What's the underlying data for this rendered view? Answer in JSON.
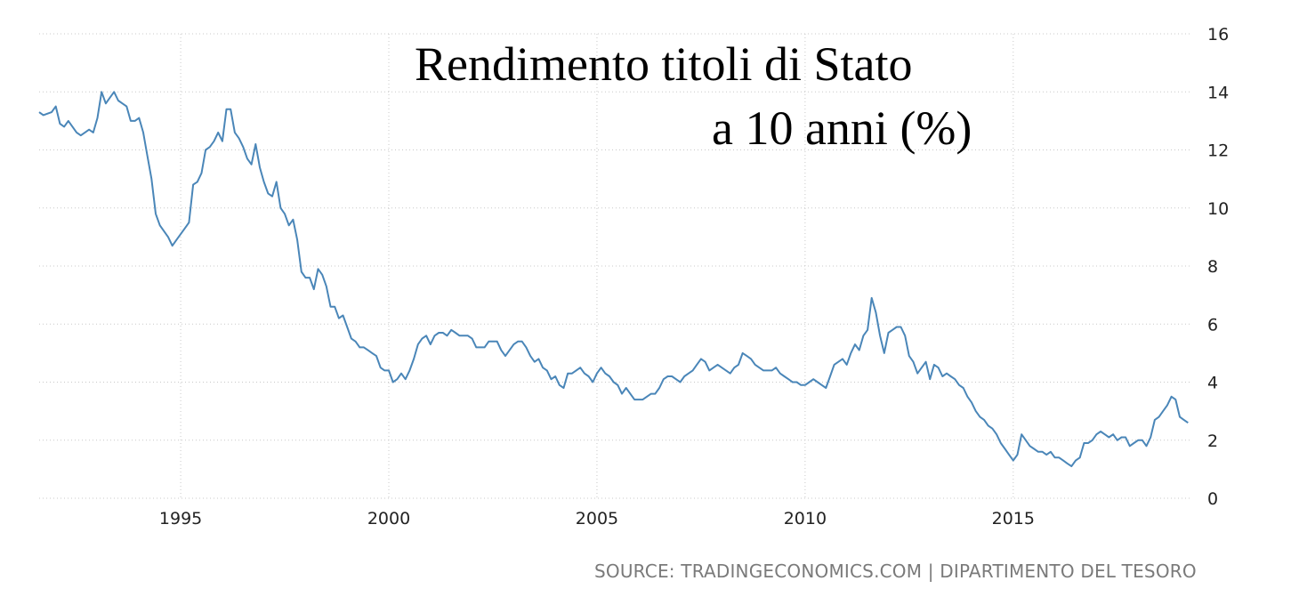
{
  "chart_data": {
    "type": "line",
    "title_line1": "Rendimento titoli di Stato",
    "title_line2": "a 10 anni (%)",
    "source": "SOURCE: TRADINGECONOMICS.COM | DIPARTIMENTO DEL TESORO",
    "xlim": [
      1991.6,
      2019.3
    ],
    "ylim": [
      0,
      16
    ],
    "x_ticks": [
      1995,
      2000,
      2005,
      2010,
      2015
    ],
    "y_ticks": [
      0,
      2,
      4,
      6,
      8,
      10,
      12,
      14,
      16
    ],
    "grid": true,
    "color": "#4a86b8",
    "series": [
      {
        "points": [
          [
            1991.6,
            13.3
          ],
          [
            1991.7,
            13.2
          ],
          [
            1991.9,
            13.3
          ],
          [
            1992.0,
            13.5
          ],
          [
            1992.1,
            12.9
          ],
          [
            1992.2,
            12.8
          ],
          [
            1992.3,
            13.0
          ],
          [
            1992.5,
            12.6
          ],
          [
            1992.6,
            12.5
          ],
          [
            1992.7,
            12.6
          ],
          [
            1992.8,
            12.7
          ],
          [
            1992.9,
            12.6
          ],
          [
            1993.0,
            13.1
          ],
          [
            1993.1,
            14.0
          ],
          [
            1993.2,
            13.6
          ],
          [
            1993.3,
            13.8
          ],
          [
            1993.4,
            14.0
          ],
          [
            1993.5,
            13.7
          ],
          [
            1993.6,
            13.6
          ],
          [
            1993.7,
            13.5
          ],
          [
            1993.8,
            13.0
          ],
          [
            1993.9,
            13.0
          ],
          [
            1994.0,
            13.1
          ],
          [
            1994.1,
            12.6
          ],
          [
            1994.2,
            11.8
          ],
          [
            1994.3,
            11.0
          ],
          [
            1994.4,
            9.8
          ],
          [
            1994.5,
            9.4
          ],
          [
            1994.6,
            9.2
          ],
          [
            1994.7,
            9.0
          ],
          [
            1994.8,
            8.7
          ],
          [
            1994.9,
            8.9
          ],
          [
            1995.0,
            9.1
          ],
          [
            1995.1,
            9.3
          ],
          [
            1995.2,
            9.5
          ],
          [
            1995.3,
            10.8
          ],
          [
            1995.4,
            10.9
          ],
          [
            1995.5,
            11.2
          ],
          [
            1995.6,
            12.0
          ],
          [
            1995.7,
            12.1
          ],
          [
            1995.8,
            12.3
          ],
          [
            1995.9,
            12.6
          ],
          [
            1996.0,
            12.3
          ],
          [
            1996.1,
            13.4
          ],
          [
            1996.2,
            13.4
          ],
          [
            1996.3,
            12.6
          ],
          [
            1996.4,
            12.4
          ],
          [
            1996.5,
            12.1
          ],
          [
            1996.6,
            11.7
          ],
          [
            1996.7,
            11.5
          ],
          [
            1996.8,
            12.2
          ],
          [
            1996.9,
            11.4
          ],
          [
            1997.0,
            10.9
          ],
          [
            1997.1,
            10.5
          ],
          [
            1997.2,
            10.4
          ],
          [
            1997.3,
            10.9
          ],
          [
            1997.4,
            10.0
          ],
          [
            1997.5,
            9.8
          ],
          [
            1997.6,
            9.4
          ],
          [
            1997.7,
            9.6
          ],
          [
            1997.8,
            8.9
          ],
          [
            1997.9,
            7.8
          ],
          [
            1998.0,
            7.6
          ],
          [
            1998.1,
            7.6
          ],
          [
            1998.2,
            7.2
          ],
          [
            1998.3,
            7.9
          ],
          [
            1998.4,
            7.7
          ],
          [
            1998.5,
            7.3
          ],
          [
            1998.6,
            6.6
          ],
          [
            1998.7,
            6.6
          ],
          [
            1998.8,
            6.2
          ],
          [
            1998.9,
            6.3
          ],
          [
            1999.0,
            5.9
          ],
          [
            1999.1,
            5.5
          ],
          [
            1999.2,
            5.4
          ],
          [
            1999.3,
            5.2
          ],
          [
            1999.4,
            5.2
          ],
          [
            1999.5,
            5.1
          ],
          [
            1999.6,
            5.0
          ],
          [
            1999.7,
            4.9
          ],
          [
            1999.8,
            4.5
          ],
          [
            1999.9,
            4.4
          ],
          [
            2000.0,
            4.4
          ],
          [
            2000.1,
            4.0
          ],
          [
            2000.2,
            4.1
          ],
          [
            2000.3,
            4.3
          ],
          [
            2000.4,
            4.1
          ],
          [
            2000.5,
            4.4
          ],
          [
            2000.6,
            4.8
          ],
          [
            2000.7,
            5.3
          ],
          [
            2000.8,
            5.5
          ],
          [
            2000.9,
            5.6
          ],
          [
            2001.0,
            5.3
          ],
          [
            2001.1,
            5.6
          ],
          [
            2001.2,
            5.7
          ],
          [
            2001.3,
            5.7
          ],
          [
            2001.4,
            5.6
          ],
          [
            2001.5,
            5.8
          ],
          [
            2001.6,
            5.7
          ],
          [
            2001.7,
            5.6
          ],
          [
            2001.8,
            5.6
          ],
          [
            2001.9,
            5.6
          ],
          [
            2002.0,
            5.5
          ],
          [
            2002.1,
            5.2
          ],
          [
            2002.2,
            5.2
          ],
          [
            2002.3,
            5.2
          ],
          [
            2002.4,
            5.4
          ],
          [
            2002.5,
            5.4
          ],
          [
            2002.6,
            5.4
          ],
          [
            2002.7,
            5.1
          ],
          [
            2002.8,
            4.9
          ],
          [
            2002.9,
            5.1
          ],
          [
            2003.0,
            5.3
          ],
          [
            2003.1,
            5.4
          ],
          [
            2003.2,
            5.4
          ],
          [
            2003.3,
            5.2
          ],
          [
            2003.4,
            4.9
          ],
          [
            2003.5,
            4.7
          ],
          [
            2003.6,
            4.8
          ],
          [
            2003.7,
            4.5
          ],
          [
            2003.8,
            4.4
          ],
          [
            2003.9,
            4.1
          ],
          [
            2004.0,
            4.2
          ],
          [
            2004.1,
            3.9
          ],
          [
            2004.2,
            3.8
          ],
          [
            2004.3,
            4.3
          ],
          [
            2004.4,
            4.3
          ],
          [
            2004.5,
            4.4
          ],
          [
            2004.6,
            4.5
          ],
          [
            2004.7,
            4.3
          ],
          [
            2004.8,
            4.2
          ],
          [
            2004.9,
            4.0
          ],
          [
            2005.0,
            4.3
          ],
          [
            2005.1,
            4.5
          ],
          [
            2005.2,
            4.3
          ],
          [
            2005.3,
            4.2
          ],
          [
            2005.4,
            4.0
          ],
          [
            2005.5,
            3.9
          ],
          [
            2005.6,
            3.6
          ],
          [
            2005.7,
            3.8
          ],
          [
            2005.8,
            3.6
          ],
          [
            2005.9,
            3.4
          ],
          [
            2006.0,
            3.4
          ],
          [
            2006.1,
            3.4
          ],
          [
            2006.2,
            3.5
          ],
          [
            2006.3,
            3.6
          ],
          [
            2006.4,
            3.6
          ],
          [
            2006.5,
            3.8
          ],
          [
            2006.6,
            4.1
          ],
          [
            2006.7,
            4.2
          ],
          [
            2006.8,
            4.2
          ],
          [
            2006.9,
            4.1
          ],
          [
            2007.0,
            4.0
          ],
          [
            2007.1,
            4.2
          ],
          [
            2007.2,
            4.3
          ],
          [
            2007.3,
            4.4
          ],
          [
            2007.4,
            4.6
          ],
          [
            2007.5,
            4.8
          ],
          [
            2007.6,
            4.7
          ],
          [
            2007.7,
            4.4
          ],
          [
            2007.8,
            4.5
          ],
          [
            2007.9,
            4.6
          ],
          [
            2008.0,
            4.5
          ],
          [
            2008.1,
            4.4
          ],
          [
            2008.2,
            4.3
          ],
          [
            2008.3,
            4.5
          ],
          [
            2008.4,
            4.6
          ],
          [
            2008.5,
            5.0
          ],
          [
            2008.6,
            4.9
          ],
          [
            2008.7,
            4.8
          ],
          [
            2008.8,
            4.6
          ],
          [
            2008.9,
            4.5
          ],
          [
            2009.0,
            4.4
          ],
          [
            2009.1,
            4.4
          ],
          [
            2009.2,
            4.4
          ],
          [
            2009.3,
            4.5
          ],
          [
            2009.4,
            4.3
          ],
          [
            2009.5,
            4.2
          ],
          [
            2009.6,
            4.1
          ],
          [
            2009.7,
            4.0
          ],
          [
            2009.8,
            4.0
          ],
          [
            2009.9,
            3.9
          ],
          [
            2010.0,
            3.9
          ],
          [
            2010.1,
            4.0
          ],
          [
            2010.2,
            4.1
          ],
          [
            2010.3,
            4.0
          ],
          [
            2010.4,
            3.9
          ],
          [
            2010.5,
            3.8
          ],
          [
            2010.6,
            4.2
          ],
          [
            2010.7,
            4.6
          ],
          [
            2010.8,
            4.7
          ],
          [
            2010.9,
            4.8
          ],
          [
            2011.0,
            4.6
          ],
          [
            2011.1,
            5.0
          ],
          [
            2011.2,
            5.3
          ],
          [
            2011.3,
            5.1
          ],
          [
            2011.4,
            5.6
          ],
          [
            2011.5,
            5.8
          ],
          [
            2011.6,
            6.9
          ],
          [
            2011.7,
            6.4
          ],
          [
            2011.8,
            5.6
          ],
          [
            2011.9,
            5.0
          ],
          [
            2012.0,
            5.7
          ],
          [
            2012.1,
            5.8
          ],
          [
            2012.2,
            5.9
          ],
          [
            2012.3,
            5.9
          ],
          [
            2012.4,
            5.6
          ],
          [
            2012.5,
            4.9
          ],
          [
            2012.6,
            4.7
          ],
          [
            2012.7,
            4.3
          ],
          [
            2012.8,
            4.5
          ],
          [
            2012.9,
            4.7
          ],
          [
            2013.0,
            4.1
          ],
          [
            2013.1,
            4.6
          ],
          [
            2013.2,
            4.5
          ],
          [
            2013.3,
            4.2
          ],
          [
            2013.4,
            4.3
          ],
          [
            2013.5,
            4.2
          ],
          [
            2013.6,
            4.1
          ],
          [
            2013.7,
            3.9
          ],
          [
            2013.8,
            3.8
          ],
          [
            2013.9,
            3.5
          ],
          [
            2014.0,
            3.3
          ],
          [
            2014.1,
            3.0
          ],
          [
            2014.2,
            2.8
          ],
          [
            2014.3,
            2.7
          ],
          [
            2014.4,
            2.5
          ],
          [
            2014.5,
            2.4
          ],
          [
            2014.6,
            2.2
          ],
          [
            2014.7,
            1.9
          ],
          [
            2014.8,
            1.7
          ],
          [
            2014.9,
            1.5
          ],
          [
            2015.0,
            1.3
          ],
          [
            2015.1,
            1.5
          ],
          [
            2015.2,
            2.2
          ],
          [
            2015.3,
            2.0
          ],
          [
            2015.4,
            1.8
          ],
          [
            2015.5,
            1.7
          ],
          [
            2015.6,
            1.6
          ],
          [
            2015.7,
            1.6
          ],
          [
            2015.8,
            1.5
          ],
          [
            2015.9,
            1.6
          ],
          [
            2016.0,
            1.4
          ],
          [
            2016.1,
            1.4
          ],
          [
            2016.2,
            1.3
          ],
          [
            2016.3,
            1.2
          ],
          [
            2016.4,
            1.1
          ],
          [
            2016.5,
            1.3
          ],
          [
            2016.6,
            1.4
          ],
          [
            2016.7,
            1.9
          ],
          [
            2016.8,
            1.9
          ],
          [
            2016.9,
            2.0
          ],
          [
            2017.0,
            2.2
          ],
          [
            2017.1,
            2.3
          ],
          [
            2017.2,
            2.2
          ],
          [
            2017.3,
            2.1
          ],
          [
            2017.4,
            2.2
          ],
          [
            2017.5,
            2.0
          ],
          [
            2017.6,
            2.1
          ],
          [
            2017.7,
            2.1
          ],
          [
            2017.8,
            1.8
          ],
          [
            2017.9,
            1.9
          ],
          [
            2018.0,
            2.0
          ],
          [
            2018.1,
            2.0
          ],
          [
            2018.2,
            1.8
          ],
          [
            2018.3,
            2.1
          ],
          [
            2018.4,
            2.7
          ],
          [
            2018.5,
            2.8
          ],
          [
            2018.6,
            3.0
          ],
          [
            2018.7,
            3.2
          ],
          [
            2018.8,
            3.5
          ],
          [
            2018.9,
            3.4
          ],
          [
            2019.0,
            2.8
          ],
          [
            2019.1,
            2.7
          ],
          [
            2019.2,
            2.6
          ]
        ]
      }
    ]
  }
}
